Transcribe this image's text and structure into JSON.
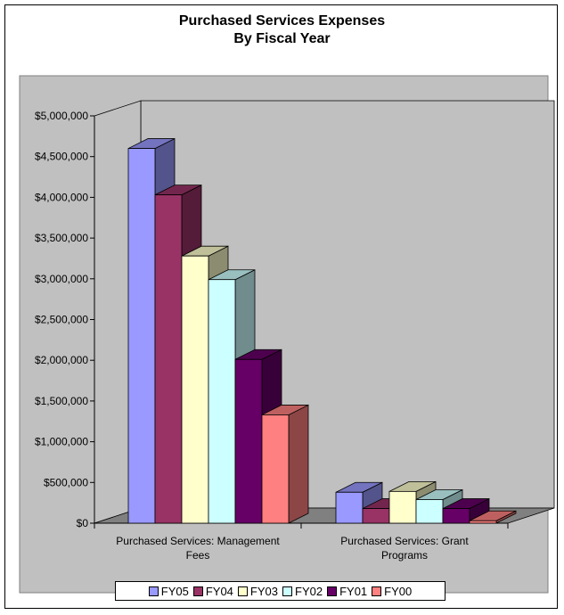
{
  "chart_data": {
    "type": "bar",
    "title": [
      "Purchased Services Expenses",
      "By Fiscal Year"
    ],
    "categories": [
      "Purchased Services:  Management Fees",
      "Purchased Services:  Grant Programs"
    ],
    "category_label_lines": [
      [
        "Purchased Services:  Management",
        "Fees"
      ],
      [
        "Purchased Services:  Grant",
        "Programs"
      ]
    ],
    "series": [
      {
        "name": "FY05",
        "color": "#9999FF",
        "values": [
          4600000,
          380000
        ]
      },
      {
        "name": "FY04",
        "color": "#993366",
        "values": [
          4030000,
          180000
        ]
      },
      {
        "name": "FY03",
        "color": "#FFFFCC",
        "values": [
          3280000,
          390000
        ]
      },
      {
        "name": "FY02",
        "color": "#CCFFFF",
        "values": [
          2990000,
          290000
        ]
      },
      {
        "name": "FY01",
        "color": "#660066",
        "values": [
          2010000,
          180000
        ]
      },
      {
        "name": "FY00",
        "color": "#FF8080",
        "values": [
          1330000,
          30000
        ]
      }
    ],
    "ylim": [
      0,
      5000000
    ],
    "yticks": [
      0,
      500000,
      1000000,
      1500000,
      2000000,
      2500000,
      3000000,
      3500000,
      4000000,
      4500000,
      5000000
    ],
    "ytick_labels": [
      "$0",
      "$500,000",
      "$1,000,000",
      "$1,500,000",
      "$2,000,000",
      "$2,500,000",
      "$3,000,000",
      "$3,500,000",
      "$4,000,000",
      "$4,500,000",
      "$5,000,000"
    ],
    "legend_position": "bottom",
    "style": "3d-clustered-column"
  }
}
